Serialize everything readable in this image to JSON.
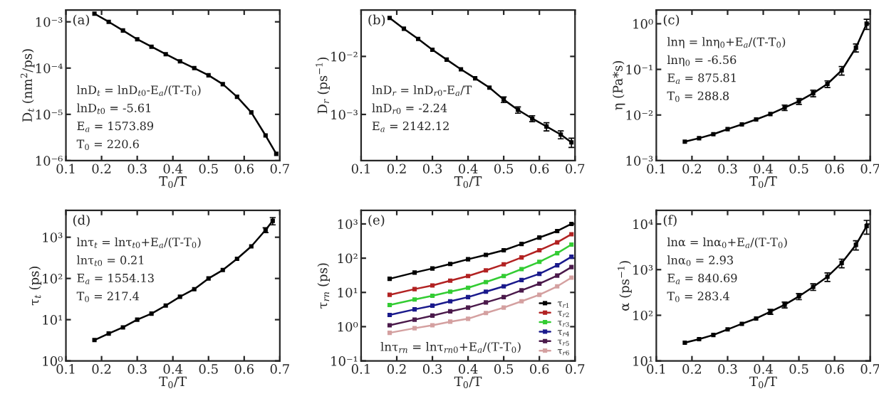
{
  "chart_data": [
    {
      "type": "line",
      "title": "(a)",
      "xlabel": "T$_{0}$/T",
      "ylabel": "D$_{t}$ (nm$^{2}$/ps)",
      "log": "y",
      "marker": "square",
      "line_style": "solid",
      "grid": false,
      "legend": false,
      "x": [
        0.18,
        0.22,
        0.26,
        0.3,
        0.34,
        0.38,
        0.42,
        0.46,
        0.5,
        0.54,
        0.58,
        0.62,
        0.66,
        0.69
      ],
      "series": [
        {
          "color": "#000000",
          "values": [
            0.0015,
            0.001,
            0.00065,
            0.00042,
            0.00029,
            0.0002,
            0.00014,
            0.0001,
            7e-05,
            4.5e-05,
            2.4e-05,
            1.1e-05,
            3.5e-06,
            1.4e-06
          ]
        }
      ],
      "xlim": [
        0.1,
        0.7
      ],
      "xticks": [
        0.1,
        0.2,
        0.3,
        0.4,
        0.5,
        0.6,
        0.7
      ],
      "ylim": [
        1e-06,
        0.0018
      ],
      "yticks": [
        {
          "value": 1e-06,
          "label": "10⁻⁶"
        },
        {
          "value": 1e-05,
          "label": "10⁻⁵"
        },
        {
          "value": 0.0001,
          "label": "10⁻⁴"
        },
        {
          "value": 0.001,
          "label": "10⁻³"
        }
      ],
      "annotations": [
        "lnD$_{t}$ = lnD$_{t0}$-E$_{a}$/(T-T$_{0}$)",
        "lnD$_{t0}$ = -5.61",
        "E$_{a}$ = 1573.89",
        "T$_{0}$ = 220.6"
      ]
    },
    {
      "type": "line",
      "title": "(b)",
      "xlabel": "T$_{0}$/T",
      "ylabel": "D$_{r}$ (ps$^{−1}$)",
      "log": "y",
      "marker": "square",
      "line_style": "solid",
      "grid": false,
      "legend": false,
      "x": [
        0.18,
        0.22,
        0.26,
        0.3,
        0.34,
        0.38,
        0.42,
        0.46,
        0.5,
        0.54,
        0.58,
        0.62,
        0.66,
        0.69
      ],
      "series": [
        {
          "color": "#000000",
          "values": [
            0.046,
            0.03,
            0.02,
            0.013,
            0.0088,
            0.006,
            0.0042,
            0.0029,
            0.0018,
            0.0012,
            0.00085,
            0.00062,
            0.00045,
            0.00033
          ],
          "errors": [
            null,
            null,
            null,
            null,
            null,
            null,
            null,
            null,
            0.0002,
            0.00015,
            0.0001,
            0.0001,
            7e-05,
            6e-05
          ]
        }
      ],
      "xlim": [
        0.1,
        0.7
      ],
      "xticks": [
        0.1,
        0.2,
        0.3,
        0.4,
        0.5,
        0.6,
        0.7
      ],
      "ylim": [
        0.00016,
        0.063
      ],
      "yticks": [
        {
          "value": 0.001,
          "label": "10⁻³"
        },
        {
          "value": 0.01,
          "label": "10⁻²"
        }
      ],
      "annotations": [
        "lnD$_{r}$ = lnD$_{r0}$-E$_{a}$/T",
        "lnD$_{r0}$ = -2.24",
        "E$_{a}$ = 2142.12"
      ]
    },
    {
      "type": "line",
      "title": "(c)",
      "xlabel": "T$_{0}$/T",
      "ylabel": "η (Pa*s)",
      "log": "y",
      "marker": "square",
      "line_style": "solid",
      "grid": false,
      "legend": false,
      "x": [
        0.18,
        0.22,
        0.26,
        0.3,
        0.34,
        0.38,
        0.42,
        0.46,
        0.5,
        0.54,
        0.58,
        0.62,
        0.66,
        0.69
      ],
      "series": [
        {
          "color": "#000000",
          "values": [
            0.0026,
            0.0031,
            0.0038,
            0.0049,
            0.0062,
            0.008,
            0.0105,
            0.0145,
            0.02,
            0.03,
            0.048,
            0.095,
            0.3,
            1.0
          ],
          "errors": [
            null,
            null,
            null,
            null,
            null,
            null,
            null,
            0.002,
            0.003,
            0.005,
            0.008,
            0.02,
            0.06,
            0.25
          ]
        }
      ],
      "xlim": [
        0.1,
        0.7
      ],
      "xticks": [
        0.1,
        0.2,
        0.3,
        0.4,
        0.5,
        0.6,
        0.7
      ],
      "ylim": [
        0.001,
        2
      ],
      "yticks": [
        {
          "value": 0.001,
          "label": "10⁻³"
        },
        {
          "value": 0.01,
          "label": "10⁻²"
        },
        {
          "value": 0.1,
          "label": "10⁻¹"
        },
        {
          "value": 1,
          "label": "10⁰"
        }
      ],
      "annotations": [
        "lnη = lnη$_{0}$+E$_{a}$/(T-T$_{0}$)",
        "lnη$_{0}$ = -6.56",
        "E$_{a}$ = 875.81",
        "T$_{0}$ = 288.8"
      ]
    },
    {
      "type": "line",
      "title": "(d)",
      "xlabel": "T$_{0}$/T",
      "ylabel": "τ$_{t}$ (ps)",
      "log": "y",
      "marker": "square",
      "line_style": "solid",
      "grid": false,
      "legend": false,
      "x": [
        0.18,
        0.22,
        0.26,
        0.3,
        0.34,
        0.38,
        0.42,
        0.46,
        0.5,
        0.54,
        0.58,
        0.62,
        0.66,
        0.68
      ],
      "series": [
        {
          "color": "#000000",
          "values": [
            3.2,
            4.6,
            6.5,
            10,
            14,
            22,
            36,
            55,
            100,
            160,
            300,
            600,
            1500,
            2500
          ],
          "errors": [
            null,
            null,
            null,
            null,
            null,
            null,
            null,
            null,
            null,
            null,
            null,
            null,
            200,
            500
          ]
        }
      ],
      "xlim": [
        0.1,
        0.7
      ],
      "xticks": [
        0.1,
        0.2,
        0.3,
        0.4,
        0.5,
        0.6,
        0.7
      ],
      "ylim": [
        1,
        4500
      ],
      "yticks": [
        {
          "value": 1,
          "label": "10⁰"
        },
        {
          "value": 10,
          "label": "10¹"
        },
        {
          "value": 100,
          "label": "10²"
        },
        {
          "value": 1000,
          "label": "10³"
        }
      ],
      "annotations": [
        "lnτ$_{t}$ = lnτ$_{t0}$+E$_{a}$/(T-T$_{0}$)",
        "lnτ$_{t0}$ = 0.21",
        "E$_{a}$ = 1554.13",
        "T$_{0}$ = 217.4"
      ]
    },
    {
      "type": "line",
      "title": "(e)",
      "xlabel": "T$_{0}$/T",
      "ylabel": "τ$_{rn}$ (ps)",
      "log": "y",
      "marker": "square",
      "line_style": "solid",
      "grid": false,
      "legend": "bottom right",
      "x": [
        0.18,
        0.25,
        0.3,
        0.35,
        0.4,
        0.45,
        0.5,
        0.55,
        0.6,
        0.65,
        0.69
      ],
      "series": [
        {
          "name": "τ$_{r1}$",
          "color": "#000000",
          "values": [
            25,
            38,
            50,
            68,
            93,
            125,
            170,
            260,
            400,
            620,
            1000
          ]
        },
        {
          "name": "τ$_{r2}$",
          "color": "#b22222",
          "values": [
            8.5,
            12.5,
            16,
            22,
            30,
            44,
            66,
            105,
            170,
            290,
            500
          ]
        },
        {
          "name": "τ$_{r3}$",
          "color": "#33cc33",
          "values": [
            4.3,
            6.2,
            8,
            10.5,
            13.7,
            20,
            30,
            48,
            78,
            140,
            250
          ]
        },
        {
          "name": "τ$_{r4}$",
          "color": "#1a1a8c",
          "values": [
            2.2,
            3.2,
            4.1,
            5.5,
            7.3,
            10.5,
            15,
            23,
            35,
            62,
            110
          ]
        },
        {
          "name": "τ$_{r5}$",
          "color": "#4b1a4b",
          "values": [
            1.1,
            1.6,
            2.1,
            2.8,
            3.6,
            5.1,
            7.3,
            11.5,
            18,
            31,
            55
          ]
        },
        {
          "name": "τ$_{r6}$",
          "color": "#d4a0a0",
          "values": [
            0.66,
            0.9,
            1.1,
            1.4,
            1.7,
            2.5,
            3.6,
            5.5,
            8.5,
            15,
            27
          ]
        }
      ],
      "xlim": [
        0.1,
        0.7
      ],
      "xticks": [
        0.1,
        0.2,
        0.3,
        0.4,
        0.5,
        0.6,
        0.7
      ],
      "ylim": [
        0.1,
        2500
      ],
      "yticks": [
        {
          "value": 0.1,
          "label": "10⁻¹"
        },
        {
          "value": 1,
          "label": "10⁰"
        },
        {
          "value": 10,
          "label": "10¹"
        },
        {
          "value": 100,
          "label": "10²"
        },
        {
          "value": 1000,
          "label": "10³"
        }
      ],
      "annotations": [
        "lnτ$_{rn}$ = lnτ$_{rn0}$+E$_{a}$/(T-T$_{0}$)"
      ]
    },
    {
      "type": "line",
      "title": "(f)",
      "xlabel": "T$_{0}$/T",
      "ylabel": "α (ps$^{−1}$)",
      "log": "y",
      "marker": "square",
      "line_style": "solid",
      "grid": false,
      "legend": false,
      "x": [
        0.18,
        0.22,
        0.26,
        0.3,
        0.34,
        0.38,
        0.42,
        0.46,
        0.5,
        0.54,
        0.58,
        0.62,
        0.66,
        0.69
      ],
      "series": [
        {
          "color": "#000000",
          "values": [
            25,
            30,
            37,
            49,
            65,
            85,
            120,
            170,
            260,
            420,
            700,
            1400,
            3500,
            9000
          ],
          "errors": [
            null,
            null,
            null,
            null,
            null,
            null,
            15,
            25,
            40,
            70,
            150,
            300,
            800,
            3000
          ]
        }
      ],
      "xlim": [
        0.1,
        0.7
      ],
      "xticks": [
        0.1,
        0.2,
        0.3,
        0.4,
        0.5,
        0.6,
        0.7
      ],
      "ylim": [
        10,
        20000
      ],
      "yticks": [
        {
          "value": 10,
          "label": "10¹"
        },
        {
          "value": 100,
          "label": "10²"
        },
        {
          "value": 1000,
          "label": "10³"
        },
        {
          "value": 10000,
          "label": "10⁴"
        }
      ],
      "annotations": [
        "lnα = lnα$_{0}$+E$_{a}$/(T-T$_{0}$)",
        "lnα$_{0}$ = 2.93",
        "E$_{a}$ = 840.69",
        "T$_{0}$ = 283.4"
      ]
    }
  ]
}
